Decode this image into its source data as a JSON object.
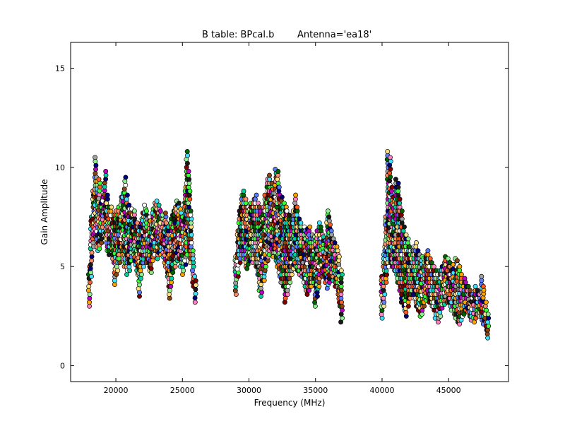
{
  "chart_data": {
    "type": "scatter",
    "title": "B table: BPcal.b",
    "subtitle": "Antenna='ea18'",
    "xlabel": "Frequency (MHz)",
    "ylabel": "Gain Amplitude",
    "xlim": [
      16600,
      49500
    ],
    "ylim": [
      -0.8,
      16.3
    ],
    "xticks": [
      20000,
      25000,
      30000,
      35000,
      40000,
      45000
    ],
    "xtick_labels": [
      "20000",
      "25000",
      "30000",
      "35000",
      "40000",
      "45000"
    ],
    "yticks": [
      0,
      5,
      10,
      15
    ],
    "ytick_labels": [
      "0",
      "5",
      "10",
      "15"
    ],
    "grid": false,
    "legend": "none",
    "palette": [
      "#1a1a1a",
      "#ff5a1f",
      "#39ff39",
      "#ffe080",
      "#5a7dff",
      "#ff80c0",
      "#00d0a0",
      "#8b4513",
      "#40e0ff",
      "#c000c0",
      "#a0a0a0",
      "#ffffff",
      "#006400",
      "#ff8c69",
      "#000080",
      "#800000",
      "#90ee90",
      "#ffa500"
    ],
    "series": [
      {
        "band": 1,
        "x": [
          18000,
          18150,
          18300,
          18450,
          18600,
          18750,
          18900,
          19050,
          19200,
          19350,
          19500,
          19650,
          19800,
          19950,
          20100,
          20250,
          20400,
          20550,
          20700,
          20850,
          21000,
          21150,
          21300,
          21450,
          21600,
          21750,
          21900,
          22050,
          22200,
          22350,
          22500,
          22650,
          22800,
          22950,
          23100,
          23250,
          23400,
          23550,
          23700,
          23850,
          24000,
          24150,
          24300,
          24450,
          24600,
          24750,
          24900,
          25050,
          25200,
          25350,
          25500,
          25650,
          25800,
          25950
        ],
        "y_low": [
          3.0,
          4.5,
          6.0,
          6.5,
          5.8,
          5.9,
          6.2,
          6.8,
          6.5,
          5.8,
          5.6,
          5.9,
          5.2,
          4.1,
          4.6,
          5.2,
          5.8,
          5.4,
          5.0,
          4.6,
          4.8,
          5.3,
          5.6,
          5.1,
          4.6,
          3.5,
          4.4,
          5.0,
          5.6,
          5.2,
          4.8,
          4.7,
          5.3,
          5.6,
          5.4,
          5.7,
          5.6,
          5.5,
          5.0,
          4.5,
          3.4,
          4.0,
          4.7,
          5.0,
          5.3,
          5.4,
          5.0,
          4.6,
          5.1,
          5.6,
          5.8,
          5.2,
          4.0,
          3.2
        ],
        "y_high": [
          5.0,
          7.5,
          8.8,
          10.5,
          9.5,
          9.4,
          8.2,
          8.5,
          9.8,
          8.6,
          8.0,
          8.0,
          7.6,
          7.8,
          7.6,
          8.0,
          8.5,
          8.7,
          9.5,
          8.6,
          8.1,
          7.9,
          7.6,
          7.8,
          7.2,
          7.0,
          7.4,
          7.7,
          8.1,
          7.8,
          7.5,
          7.3,
          7.9,
          8.2,
          8.3,
          8.1,
          7.8,
          7.6,
          7.7,
          7.2,
          7.0,
          7.4,
          7.8,
          8.0,
          8.3,
          8.2,
          7.9,
          7.5,
          9.0,
          10.8,
          9.8,
          7.8,
          5.8,
          4.5
        ]
      },
      {
        "band": 2,
        "x": [
          29000,
          29150,
          29300,
          29450,
          29600,
          29750,
          29900,
          30050,
          30200,
          30350,
          30500,
          30650,
          30800,
          30950,
          31100,
          31250,
          31400,
          31550,
          31700,
          31850,
          32000,
          32150,
          32300,
          32450,
          32600,
          32750,
          32900,
          33050,
          33200,
          33350,
          33500,
          33650,
          33800,
          33950,
          34100,
          34250,
          34400,
          34550,
          34700,
          34850,
          35000,
          35150,
          35300,
          35450,
          35600,
          35750,
          35900,
          36050,
          36200,
          36350,
          36500,
          36650,
          36800,
          36950
        ],
        "y_low": [
          3.6,
          4.5,
          5.2,
          5.6,
          5.4,
          5.0,
          4.9,
          5.3,
          5.4,
          5.2,
          5.0,
          4.6,
          3.8,
          3.5,
          4.3,
          4.8,
          5.3,
          5.6,
          5.7,
          5.5,
          5.3,
          5.0,
          4.5,
          4.2,
          4.0,
          3.2,
          3.6,
          4.2,
          4.6,
          4.9,
          5.0,
          4.8,
          4.6,
          4.5,
          4.2,
          3.8,
          3.6,
          3.8,
          4.0,
          4.2,
          3.0,
          3.5,
          4.0,
          4.5,
          4.6,
          4.2,
          3.9,
          4.2,
          4.5,
          4.3,
          4.0,
          3.6,
          3.0,
          2.2
        ],
        "y_high": [
          5.5,
          6.8,
          7.8,
          8.6,
          8.8,
          8.4,
          8.0,
          7.9,
          8.2,
          8.4,
          8.6,
          8.2,
          8.0,
          7.5,
          8.0,
          8.6,
          9.4,
          9.6,
          9.2,
          8.9,
          9.9,
          9.8,
          9.0,
          8.5,
          8.2,
          8.0,
          7.8,
          7.6,
          7.4,
          7.8,
          8.6,
          8.0,
          7.4,
          7.2,
          7.0,
          6.8,
          6.9,
          7.0,
          6.6,
          6.4,
          6.5,
          6.8,
          7.2,
          7.0,
          6.5,
          6.3,
          7.8,
          7.5,
          6.8,
          6.4,
          6.2,
          6.0,
          5.5,
          4.8
        ]
      },
      {
        "band": 3,
        "x": [
          40000,
          40150,
          40300,
          40450,
          40600,
          40750,
          40900,
          41050,
          41200,
          41350,
          41500,
          41650,
          41800,
          41950,
          42100,
          42250,
          42400,
          42550,
          42700,
          42850,
          43000,
          43150,
          43300,
          43450,
          43600,
          43750,
          43900,
          44050,
          44200,
          44350,
          44500,
          44650,
          44800,
          44950,
          45100,
          45250,
          45400,
          45550,
          45700,
          45850,
          46000,
          46150,
          46300,
          46450,
          46600,
          46750,
          46900,
          47050,
          47200,
          47350,
          47500,
          47650,
          47800,
          47950
        ],
        "y_low": [
          2.4,
          3.0,
          4.2,
          5.0,
          5.2,
          5.0,
          4.8,
          4.6,
          4.2,
          3.8,
          3.2,
          2.8,
          2.5,
          3.0,
          3.4,
          3.6,
          3.4,
          3.0,
          2.8,
          2.5,
          2.6,
          3.0,
          3.3,
          3.4,
          3.2,
          3.0,
          2.8,
          2.4,
          2.2,
          2.5,
          2.9,
          3.1,
          3.3,
          3.2,
          3.0,
          2.8,
          2.6,
          2.4,
          2.2,
          2.1,
          2.3,
          2.6,
          2.8,
          2.7,
          2.5,
          2.3,
          2.2,
          2.4,
          2.6,
          2.5,
          2.3,
          2.1,
          1.8,
          1.4
        ],
        "y_high": [
          4.5,
          6.0,
          7.5,
          10.8,
          10.5,
          9.0,
          8.5,
          9.4,
          9.2,
          8.4,
          7.8,
          7.0,
          6.6,
          6.4,
          6.0,
          5.8,
          6.0,
          6.2,
          5.8,
          5.6,
          5.5,
          5.4,
          5.6,
          5.8,
          5.4,
          5.2,
          5.0,
          4.8,
          4.6,
          4.8,
          5.0,
          5.2,
          5.5,
          5.4,
          5.2,
          5.0,
          5.1,
          5.4,
          5.3,
          5.0,
          4.6,
          4.4,
          4.2,
          4.0,
          3.8,
          3.6,
          3.5,
          4.0,
          3.8,
          3.6,
          4.5,
          4.0,
          3.2,
          2.6
        ]
      }
    ]
  }
}
